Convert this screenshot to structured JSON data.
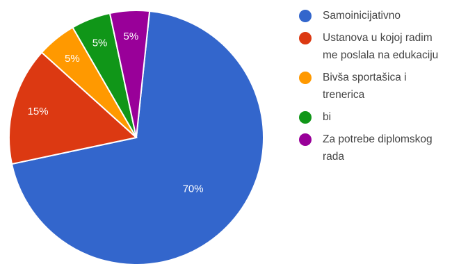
{
  "chart_data": {
    "type": "pie",
    "start_angle_deg": -84,
    "direction": "clockwise",
    "legend_position": "right",
    "slices": [
      {
        "label": "Samoinicijativno",
        "value": 70,
        "display": "70%",
        "color": "#3366cc"
      },
      {
        "label": "Ustanova u kojoj radim me poslala na edukaciju",
        "value": 15,
        "display": "15%",
        "color": "#dc3912"
      },
      {
        "label": "Bivša sportašica i trenerica",
        "value": 5,
        "display": "5%",
        "color": "#ff9900"
      },
      {
        "label": "bi",
        "value": 5,
        "display": "5%",
        "color": "#109618"
      },
      {
        "label": "Za potrebe diplomskog rada",
        "value": 5,
        "display": "5%",
        "color": "#990099"
      }
    ]
  }
}
